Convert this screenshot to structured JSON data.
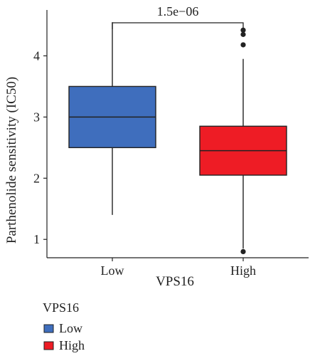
{
  "chart_data": {
    "type": "box",
    "xlabel": "VPS16",
    "ylabel": "Parthenolide sensitivity (IC50)",
    "ylim": [
      0.7,
      4.75
    ],
    "y_ticks": [
      1,
      2,
      3,
      4
    ],
    "categories": [
      "Low",
      "High"
    ],
    "boxes": [
      {
        "category": "Low",
        "color": "#3F6EBD",
        "whisker_low": 1.4,
        "q1": 2.5,
        "median": 3.0,
        "q3": 3.5,
        "whisker_high": 4.55,
        "outliers": []
      },
      {
        "category": "High",
        "color": "#EE1C25",
        "whisker_low": 0.85,
        "q1": 2.05,
        "median": 2.45,
        "q3": 2.85,
        "whisker_high": 3.95,
        "outliers": [
          4.42,
          4.35,
          4.18,
          0.8
        ]
      }
    ],
    "comparison": {
      "label": "1.5e−06",
      "between": [
        "Low",
        "High"
      ]
    },
    "legend": {
      "title": "VPS16",
      "position": "bottom",
      "entries": [
        {
          "label": "Low",
          "color": "#3F6EBD"
        },
        {
          "label": "High",
          "color": "#EE1C25"
        }
      ]
    },
    "grid": false
  }
}
